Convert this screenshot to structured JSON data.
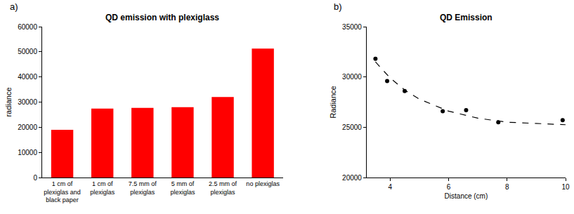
{
  "chart_data": [
    {
      "type": "bar",
      "title": "QD emission with plexiglass",
      "annotations": [
        "a)"
      ],
      "ylabel": "radiance",
      "categories": [
        "1 cm of plexiglas and black paper",
        "1 cm of plexiglas",
        "7.5 mm of plexiglas",
        "5 mm of plexiglas",
        "2.5 mm of plexiglas",
        "no plexiglas"
      ],
      "values": [
        19000,
        27400,
        27700,
        28000,
        32000,
        51300
      ],
      "color": "#ff0000",
      "ylim": [
        0,
        60000
      ],
      "yticks": [
        0,
        10000,
        20000,
        30000,
        40000,
        50000,
        60000
      ],
      "grid": false
    },
    {
      "type": "scatter",
      "title": "QD Emission",
      "annotations": [
        "b)"
      ],
      "xlabel": "Distance (cm)",
      "ylabel": "Radiance",
      "series": [
        {
          "type": "scatter",
          "marker": "circle",
          "color": "#000000",
          "x": [
            3.5,
            3.9,
            4.5,
            5.8,
            6.6,
            7.7,
            9.9
          ],
          "values": [
            31800,
            29600,
            28600,
            26600,
            26700,
            25500,
            25700
          ]
        },
        {
          "type": "line",
          "line_style": "dash",
          "color": "#000000",
          "x": [
            3.5,
            4,
            4.5,
            5,
            6,
            7,
            8,
            9,
            10
          ],
          "values": [
            31500,
            29900,
            28700,
            27800,
            26600,
            25900,
            25500,
            25350,
            25250
          ]
        }
      ],
      "xlim": [
        3.2,
        10
      ],
      "xticks": [
        4,
        6,
        8,
        10
      ],
      "ylim": [
        20000,
        35000
      ],
      "yticks": [
        20000,
        25000,
        30000,
        35000
      ],
      "grid": false
    }
  ]
}
